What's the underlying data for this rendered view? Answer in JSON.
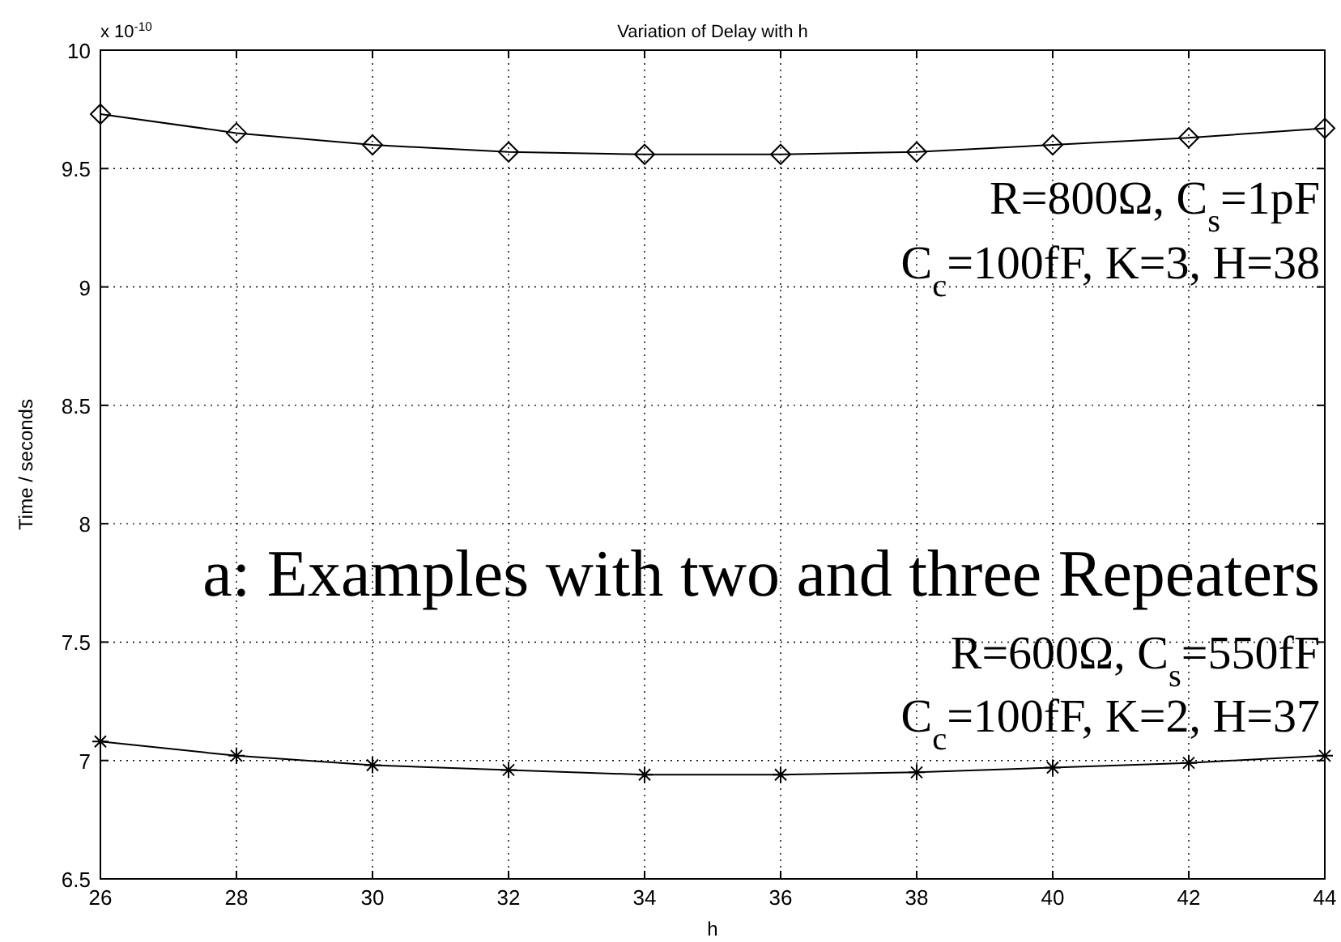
{
  "chart_data": {
    "type": "line",
    "title": "Variation of Delay with h",
    "xlabel": "h",
    "ylabel": "Time / seconds",
    "x": [
      26,
      28,
      30,
      32,
      34,
      36,
      38,
      40,
      42,
      44
    ],
    "series": [
      {
        "color": "#000000",
        "marker": "diamond",
        "values": [
          9.73,
          9.65,
          9.6,
          9.57,
          9.56,
          9.56,
          9.57,
          9.6,
          9.63,
          9.67
        ]
      },
      {
        "color": "#000000",
        "marker": "cross",
        "values": [
          7.08,
          7.02,
          6.98,
          6.96,
          6.94,
          6.94,
          6.95,
          6.97,
          6.99,
          7.02
        ]
      }
    ],
    "xlim": [
      26,
      44
    ],
    "xticks": [
      26,
      28,
      30,
      32,
      34,
      36,
      38,
      40,
      42,
      44
    ],
    "ylim": [
      6.5,
      10
    ],
    "yticks": [
      6.5,
      7,
      7.5,
      8,
      8.5,
      9,
      9.5,
      10
    ],
    "grid": true,
    "line_style": "solid",
    "annotations": [
      "x 10$^{-10}$",
      "R=800Ω, C$_{s}$=1pF",
      "C$_{c}$=100fF, K=3, H=38",
      "a: Examples with two and three Repeaters",
      "R=600Ω, C$_{s}$=550fF",
      "C$_{c}$=100fF, K=2, H=37"
    ]
  }
}
